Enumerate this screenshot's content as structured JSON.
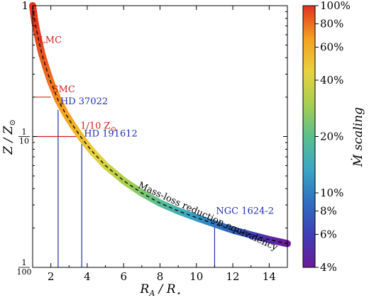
{
  "chart_data": {
    "type": "line",
    "xlabel": "R_A / R_⋆",
    "ylabel": "Z / Z_⊙",
    "xlim": [
      1,
      15
    ],
    "ylim": [
      0.01,
      1
    ],
    "yscale": "log",
    "grid": false,
    "x_ticks": [
      2,
      4,
      6,
      8,
      10,
      12,
      14
    ],
    "x_tick_labels": [
      "2",
      "4",
      "6",
      "8",
      "10",
      "12",
      "14"
    ],
    "y_ticks": [
      {
        "value": 1,
        "label": "1",
        "fraction": false
      },
      {
        "value": 0.1,
        "num": "1",
        "den": "10",
        "fraction": true
      },
      {
        "value": 0.01,
        "num": "1",
        "den": "100",
        "fraction": true
      }
    ],
    "series": [
      {
        "name": "",
        "style": "dashed black over colour band",
        "x": [
          1.0,
          1.1,
          1.2,
          1.3,
          1.5,
          1.75,
          2.0,
          2.4,
          2.8,
          3.2,
          3.7,
          4.2,
          5.0,
          6.0,
          7.0,
          8.0,
          9.0,
          10.0,
          11.0,
          12.0,
          13.0,
          14.0,
          15.0
        ],
        "y": [
          1.0,
          0.79,
          0.66,
          0.57,
          0.43,
          0.33,
          0.26,
          0.19,
          0.15,
          0.122,
          0.097,
          0.079,
          0.06,
          0.046,
          0.037,
          0.031,
          0.027,
          0.024,
          0.0215,
          0.0193,
          0.0177,
          0.0163,
          0.0152
        ]
      }
    ],
    "reference_lines": [
      {
        "label": "LMC",
        "color": "red",
        "z": 0.5,
        "r": 1.2
      },
      {
        "label": "SMC",
        "color": "red",
        "z": 0.2,
        "r": 2.0
      },
      {
        "label": "HD 37022",
        "color": "blue",
        "z": 0.16,
        "r": 2.4
      },
      {
        "label": "1/10 Z",
        "suffix": "⊙",
        "color": "red",
        "z": 0.1,
        "r": 3.7
      },
      {
        "label": "HD 191612",
        "color": "blue",
        "z": 0.1,
        "r": 3.7
      },
      {
        "label": "NGC 1624-2",
        "color": "blue",
        "z": 0.0215,
        "r": 11.0
      }
    ],
    "annotation": "Mass-loss reduction equivalency",
    "colorbar": {
      "label": "Ṁ scaling",
      "scale": "log",
      "range": [
        4,
        100
      ],
      "ticks": [
        4,
        6,
        8,
        10,
        20,
        40,
        60,
        80,
        100
      ],
      "tick_labels": [
        "4%",
        "6%",
        "8%",
        "10%",
        "20%",
        "40%",
        "60%",
        "80%",
        "100%"
      ],
      "colormap": [
        "#6a1b9a",
        "#3f3fb6",
        "#2f6fc0",
        "#3aa6c4",
        "#5bbf8e",
        "#a8cf4f",
        "#e8d23e",
        "#f4a020",
        "#e2321f"
      ]
    }
  }
}
